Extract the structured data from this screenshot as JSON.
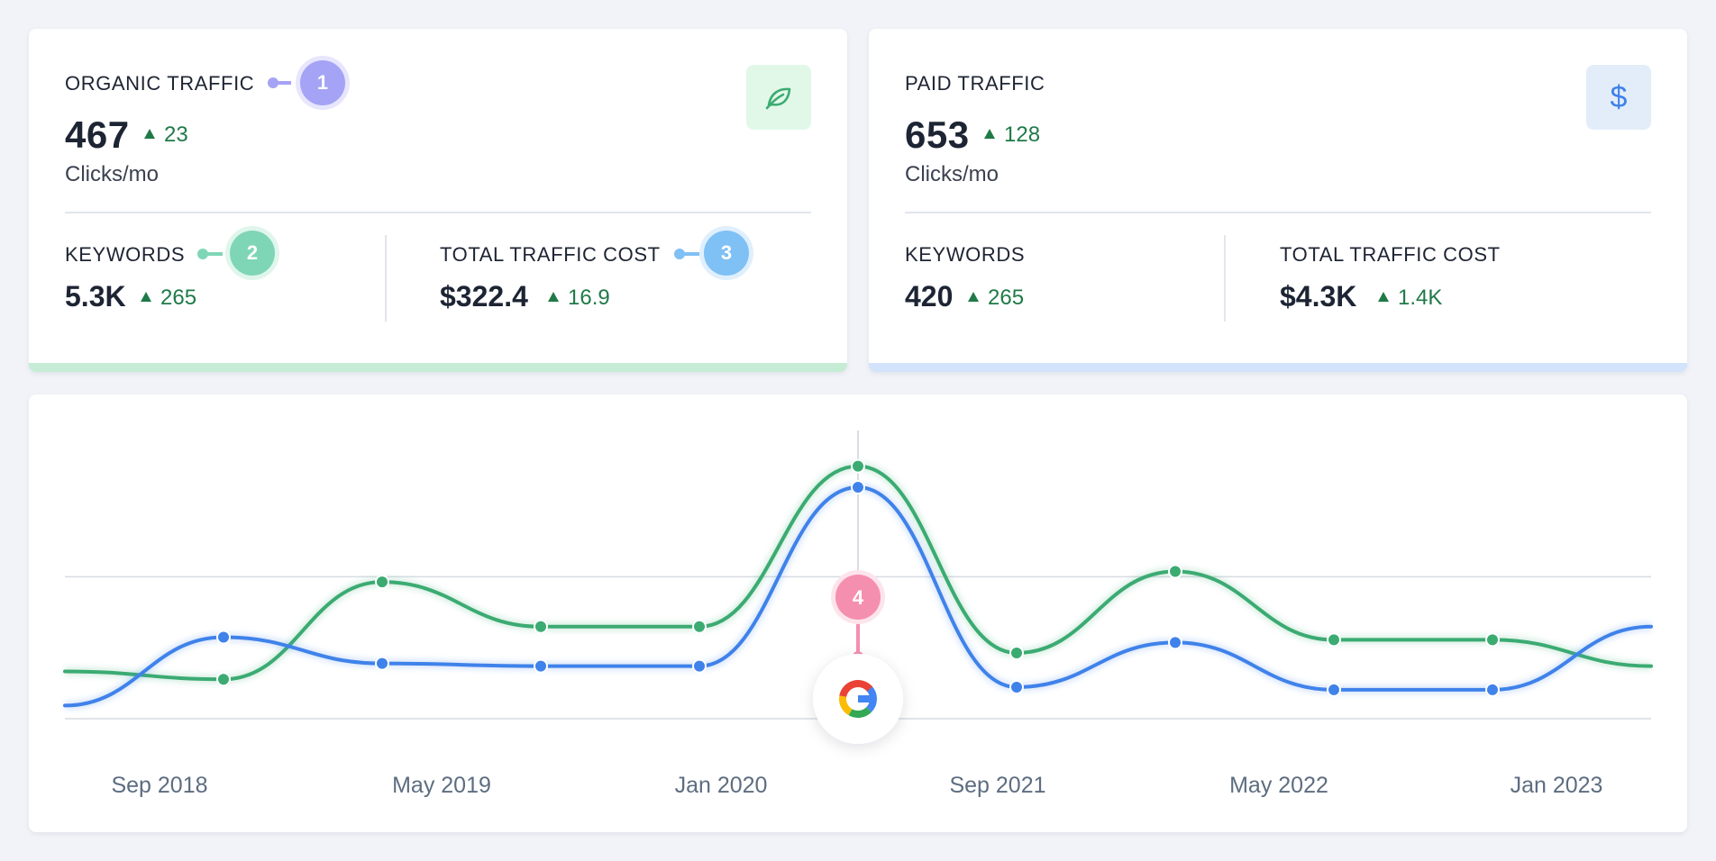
{
  "organic": {
    "title": "ORGANIC TRAFFIC",
    "value": "467",
    "delta": "23",
    "unit": "Clicks/mo",
    "keywords_label": "KEYWORDS",
    "keywords_value": "5.3K",
    "keywords_delta": "265",
    "cost_label": "TOTAL TRAFFIC COST",
    "cost_value": "$322.4",
    "cost_delta": "16.9",
    "icon": "leaf-icon",
    "accent": "#c6ecd6"
  },
  "paid": {
    "title": "PAID TRAFFIC",
    "value": "653",
    "delta": "128",
    "unit": "Clicks/mo",
    "keywords_label": "KEYWORDS",
    "keywords_value": "420",
    "keywords_delta": "265",
    "cost_label": "TOTAL TRAFFIC COST",
    "cost_value": "$4.3K",
    "cost_delta": "1.4K",
    "icon": "dollar-icon",
    "accent": "#d3e3fb"
  },
  "callouts": {
    "c1": "1",
    "c2": "2",
    "c3": "3",
    "c4": "4",
    "colors": {
      "c1": "#a4a3f5",
      "c2": "#7fd6b6",
      "c3": "#7fc0f5",
      "c4": "#f58fb0"
    }
  },
  "chart_data": {
    "type": "line",
    "x_ticks": [
      "Sep 2018",
      "May 2019",
      "Jan 2020",
      "Sep 2021",
      "May 2022",
      "Jan 2023"
    ],
    "grid": true,
    "marker_icon": "google-g-icon",
    "series": [
      {
        "color": "#3bab72",
        "values": [
          0.18,
          0.15,
          0.52,
          0.35,
          0.35,
          0.96,
          0.25,
          0.56,
          0.3,
          0.3,
          0.2
        ]
      },
      {
        "color": "#3f82ea",
        "values": [
          0.05,
          0.31,
          0.21,
          0.2,
          0.2,
          0.88,
          0.12,
          0.29,
          0.11,
          0.11,
          0.35
        ]
      }
    ]
  }
}
